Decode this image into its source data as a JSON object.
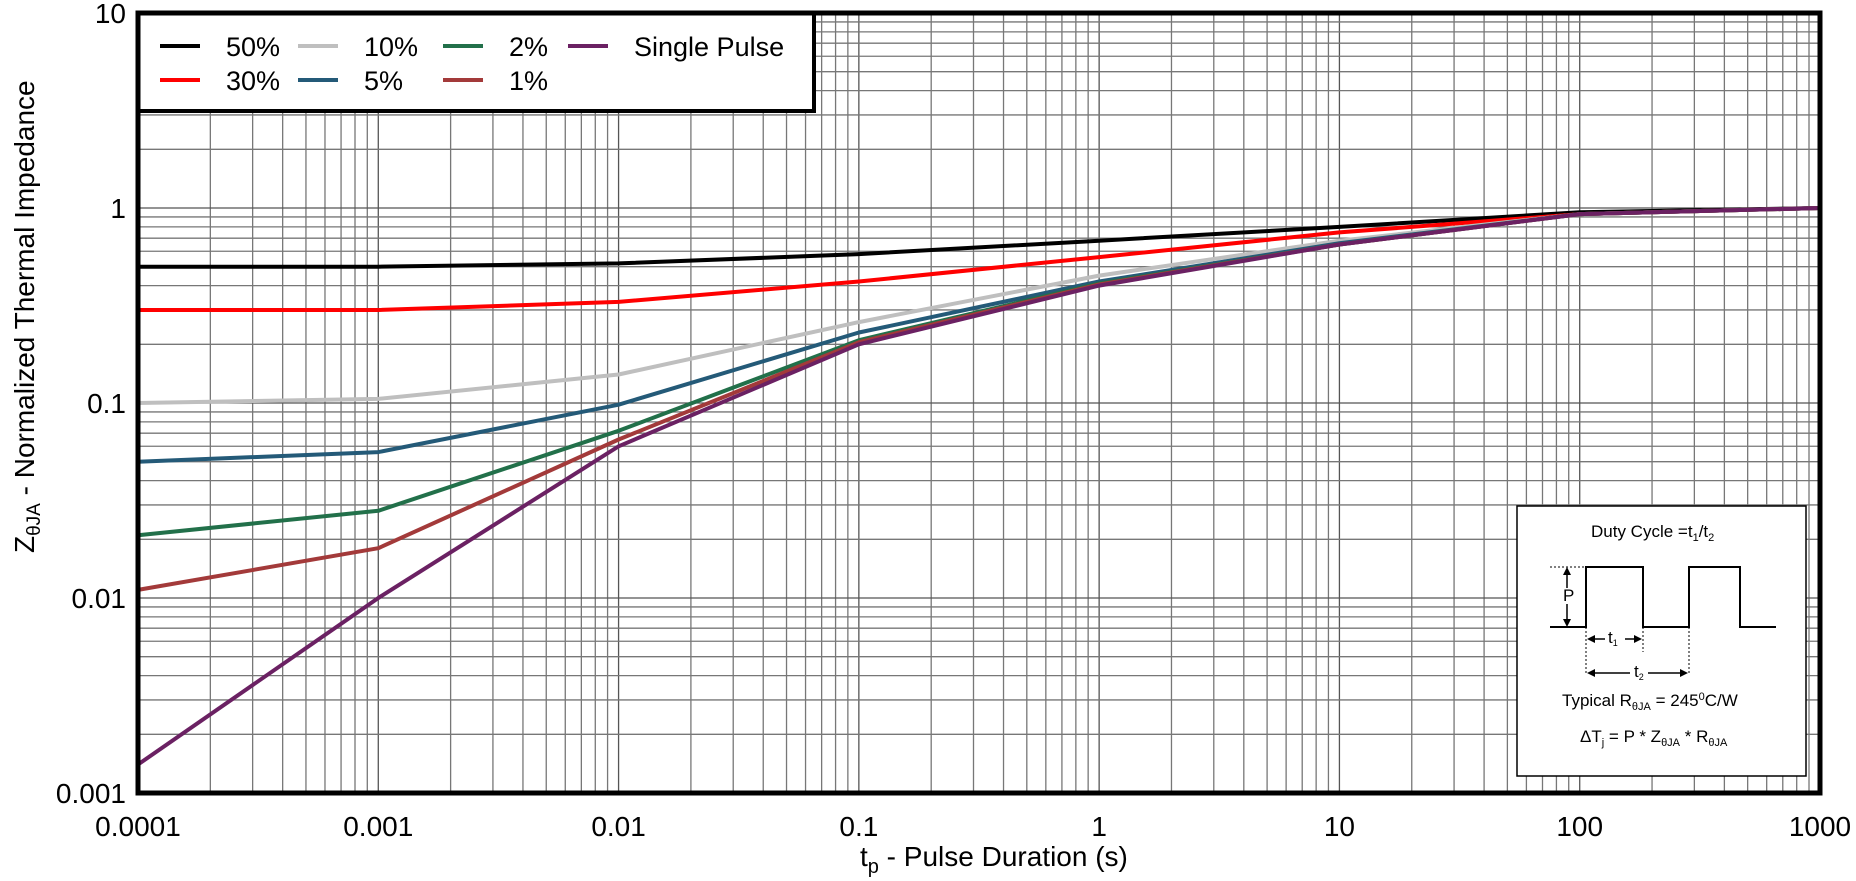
{
  "chart_data": {
    "type": "line",
    "title": "",
    "xlabel": "t_p - Pulse Duration (s)",
    "ylabel": "Z_θJA - Normalized Thermal Impedance",
    "xscale": "log",
    "yscale": "log",
    "xlim": [
      0.0001,
      1000
    ],
    "ylim": [
      0.001,
      10
    ],
    "grid": true,
    "legend_position": "top-left",
    "x_tick_labels": [
      "0.0001",
      "0.001",
      "0.01",
      "0.1",
      "1",
      "10",
      "100",
      "1000"
    ],
    "y_tick_labels": [
      "0.001",
      "0.01",
      "0.1",
      "1",
      "10"
    ],
    "x": [
      0.0001,
      0.001,
      0.01,
      0.1,
      1,
      10,
      100,
      1000
    ],
    "series": [
      {
        "name": "50%",
        "color": "#000000",
        "values": [
          0.5,
          0.5,
          0.52,
          0.58,
          0.68,
          0.8,
          0.95,
          1.0
        ]
      },
      {
        "name": "30%",
        "color": "#ff0000",
        "values": [
          0.3,
          0.3,
          0.33,
          0.42,
          0.56,
          0.75,
          0.93,
          1.0
        ]
      },
      {
        "name": "10%",
        "color": "#bfbfbf",
        "values": [
          0.1,
          0.105,
          0.14,
          0.26,
          0.45,
          0.68,
          0.93,
          1.0
        ]
      },
      {
        "name": "5%",
        "color": "#245a78",
        "values": [
          0.05,
          0.056,
          0.098,
          0.23,
          0.42,
          0.66,
          0.93,
          1.0
        ]
      },
      {
        "name": "2%",
        "color": "#22704a",
        "values": [
          0.021,
          0.028,
          0.072,
          0.21,
          0.41,
          0.65,
          0.93,
          1.0
        ]
      },
      {
        "name": "1%",
        "color": "#a33a3a",
        "values": [
          0.011,
          0.018,
          0.065,
          0.205,
          0.405,
          0.65,
          0.93,
          1.0
        ]
      },
      {
        "name": "Single Pulse",
        "color": "#6b2163",
        "values": [
          0.0014,
          0.01,
          0.06,
          0.2,
          0.4,
          0.65,
          0.93,
          1.0
        ]
      }
    ],
    "legend": {
      "rows": [
        [
          "50%",
          "10%",
          "2%",
          "Single Pulse"
        ],
        [
          "30%",
          "5%",
          "1%"
        ]
      ]
    },
    "annotations": {
      "inset_title": "Duty Cycle =t1/t2",
      "pulse_label": "P",
      "t1_label": "t1",
      "t2_label": "t2",
      "typical": "Typical RθJA = 245⁰C/W",
      "formula": "ΔTj = P * ZθJA * RθJA"
    }
  },
  "axes": {
    "xlabel_main": "t",
    "xlabel_sub": "p",
    "xlabel_rest": " - Pulse Duration (s)",
    "ylabel_main": "Z",
    "ylabel_sub": "θJA",
    "ylabel_rest": " - Normalized Thermal Impedance"
  },
  "inset": {
    "title_pre": "Duty Cycle =t",
    "title_s1": "1",
    "title_mid": "/t",
    "title_s2": "2",
    "p": "P",
    "t1": "t",
    "t1s": "1",
    "t2": "t",
    "t2s": "2",
    "typ_pre": "Typical R",
    "typ_sub": "θJA",
    "typ_post": " = 245",
    "typ_sup": "0",
    "typ_end": "C/W",
    "f1": "ΔT",
    "f1s": "j",
    "f2": " = P * Z",
    "f2s": "θJA",
    "f3": " * R",
    "f3s": "θJA"
  }
}
